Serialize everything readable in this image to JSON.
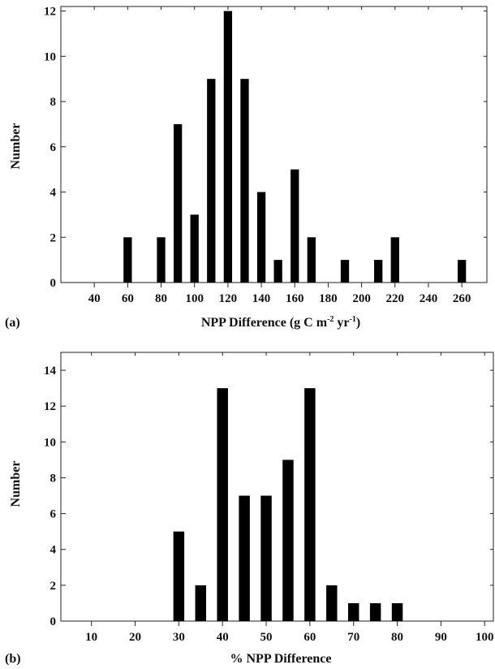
{
  "chart_data": [
    {
      "type": "bar",
      "panel_label": "(a)",
      "xlabel": "NPP Difference (g C m",
      "xlabel_sup1": "-2",
      "xlabel_mid": " yr",
      "xlabel_sup2": "-1",
      "xlabel_end": ")",
      "ylabel": "Number",
      "xlim": [
        20,
        275
      ],
      "ylim": [
        0,
        12.2
      ],
      "xticks": [
        40,
        60,
        80,
        100,
        120,
        140,
        160,
        180,
        200,
        220,
        240,
        260
      ],
      "yticks": [
        0,
        2,
        4,
        6,
        8,
        10,
        12
      ],
      "x": [
        60,
        80,
        90,
        100,
        110,
        120,
        130,
        140,
        150,
        160,
        170,
        190,
        210,
        220,
        260
      ],
      "values": [
        2,
        2,
        7,
        3,
        9,
        12,
        9,
        4,
        1,
        5,
        2,
        1,
        1,
        2,
        1
      ],
      "bar_width": 5
    },
    {
      "type": "bar",
      "panel_label": "(b)",
      "xlabel": "% NPP Difference",
      "ylabel": "Number",
      "xlim": [
        3,
        102
      ],
      "ylim": [
        0,
        15
      ],
      "xticks": [
        10,
        20,
        30,
        40,
        50,
        60,
        70,
        80,
        90,
        100
      ],
      "yticks": [
        0,
        2,
        4,
        6,
        8,
        10,
        12,
        14
      ],
      "x": [
        30,
        35,
        40,
        45,
        50,
        55,
        60,
        65,
        70,
        75,
        80
      ],
      "values": [
        5,
        2,
        13,
        7,
        7,
        9,
        13,
        2,
        1,
        1,
        1
      ],
      "bar_width": 2.5
    }
  ]
}
